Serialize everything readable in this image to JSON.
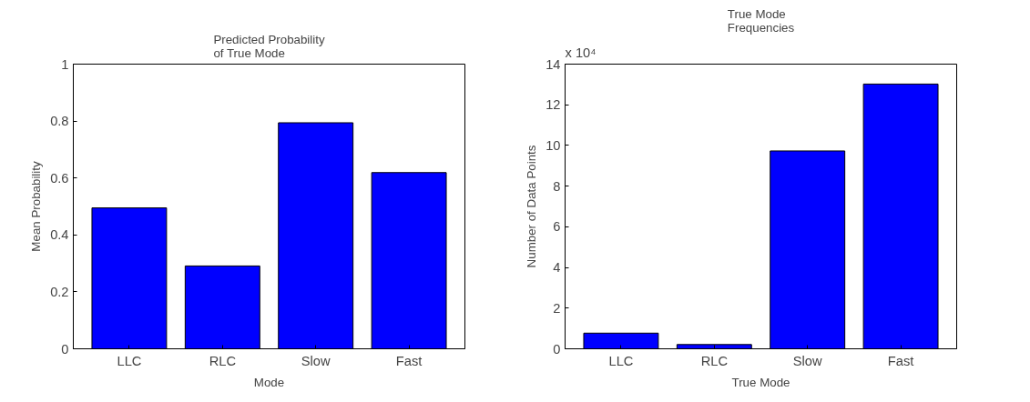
{
  "chart_data": [
    {
      "type": "bar",
      "title": "Predicted Probability\n of True Mode",
      "xlabel": "Mode",
      "ylabel": "Mean Probability",
      "categories": [
        "LLC",
        "RLC",
        "Slow",
        "Fast"
      ],
      "values": [
        0.495,
        0.291,
        0.794,
        0.619
      ],
      "color": "#0000ff",
      "ylim": [
        0,
        1
      ],
      "yticks": [
        0,
        0.2,
        0.4,
        0.6,
        0.8,
        1
      ],
      "grid": false
    },
    {
      "type": "bar",
      "title": "True Mode\nFrequencies",
      "xlabel": "True Mode",
      "ylabel": "Number of Data Points",
      "categories": [
        "LLC",
        "RLC",
        "Slow",
        "Fast"
      ],
      "values": [
        0.77,
        0.21,
        9.73,
        13.02
      ],
      "color": "#0000ff",
      "ylim": [
        0,
        14
      ],
      "yticks": [
        0,
        2,
        4,
        6,
        8,
        10,
        12,
        14
      ],
      "annotations": [
        "x 10⁴"
      ],
      "grid": false
    }
  ]
}
